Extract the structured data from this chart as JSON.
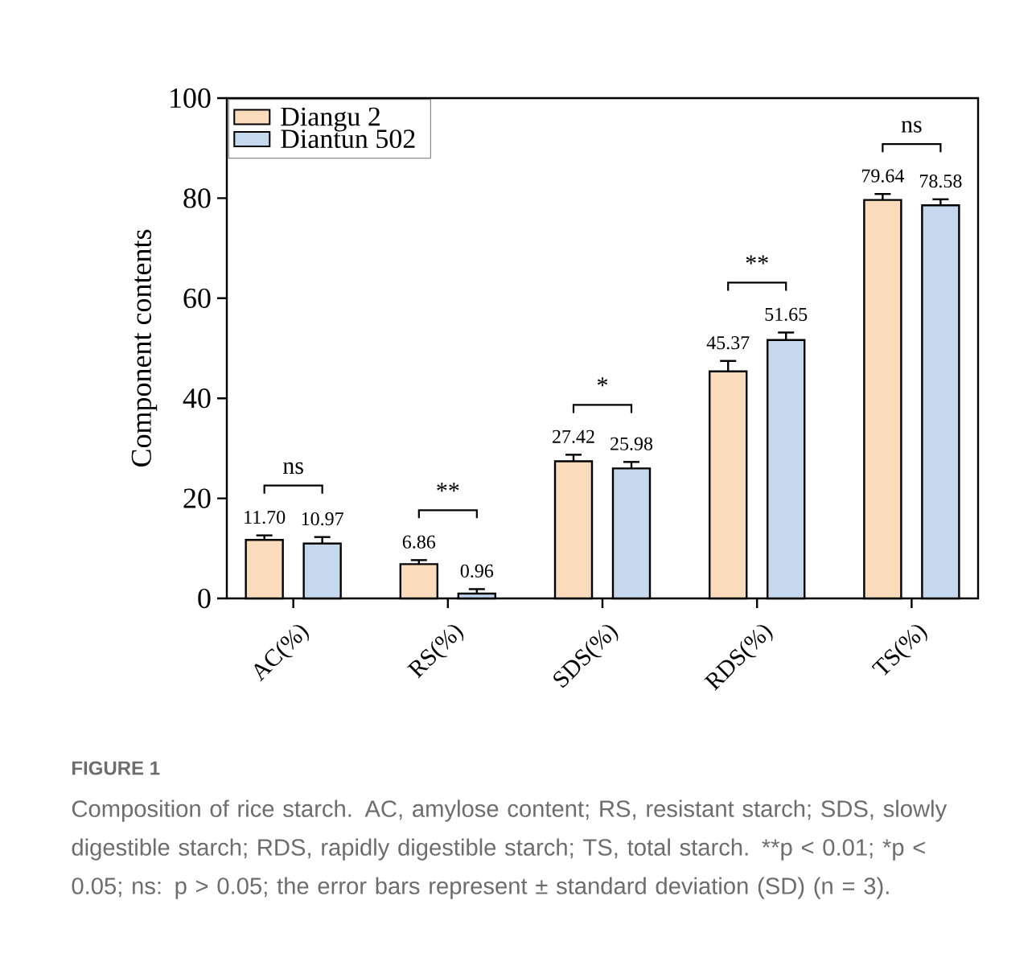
{
  "chart_data": {
    "type": "bar",
    "ylabel": "Component contents",
    "categories": [
      "AC(%)",
      "RS(%)",
      "SDS(%)",
      "RDS(%)",
      "TS(%)"
    ],
    "series": [
      {
        "name": "Diangu 2",
        "color": "#fadcbc",
        "values": [
          11.7,
          6.86,
          27.42,
          45.37,
          79.64
        ],
        "errors": [
          0.9,
          0.8,
          1.3,
          2.1,
          1.2
        ],
        "value_labels": [
          "11.70",
          "6.86",
          "27.42",
          "45.37",
          "79.64"
        ]
      },
      {
        "name": "Diantun 502",
        "color": "#c5d8ee",
        "values": [
          10.97,
          0.96,
          25.98,
          51.65,
          78.58
        ],
        "errors": [
          1.3,
          0.9,
          1.3,
          1.5,
          1.2
        ],
        "value_labels": [
          "10.97",
          "0.96",
          "25.98",
          "51.65",
          "78.58"
        ]
      }
    ],
    "ylim": [
      0,
      100
    ],
    "yticks": [
      0,
      20,
      40,
      60,
      80,
      100
    ],
    "legend": "top left",
    "grid": false,
    "annotations": [
      "ns",
      "**",
      "*",
      "**",
      "ns",
      "FIGURE 1",
      "Composition of rice starch. AC, amylose content; RS, resistant starch; SDS, slowly digestible starch; RDS, rapidly digestible starch; TS, total starch. **p < 0.01; *p < 0.05; ns: p > 0.05; the error bars represent ± standard deviation (SD) (n = 3)."
    ]
  }
}
